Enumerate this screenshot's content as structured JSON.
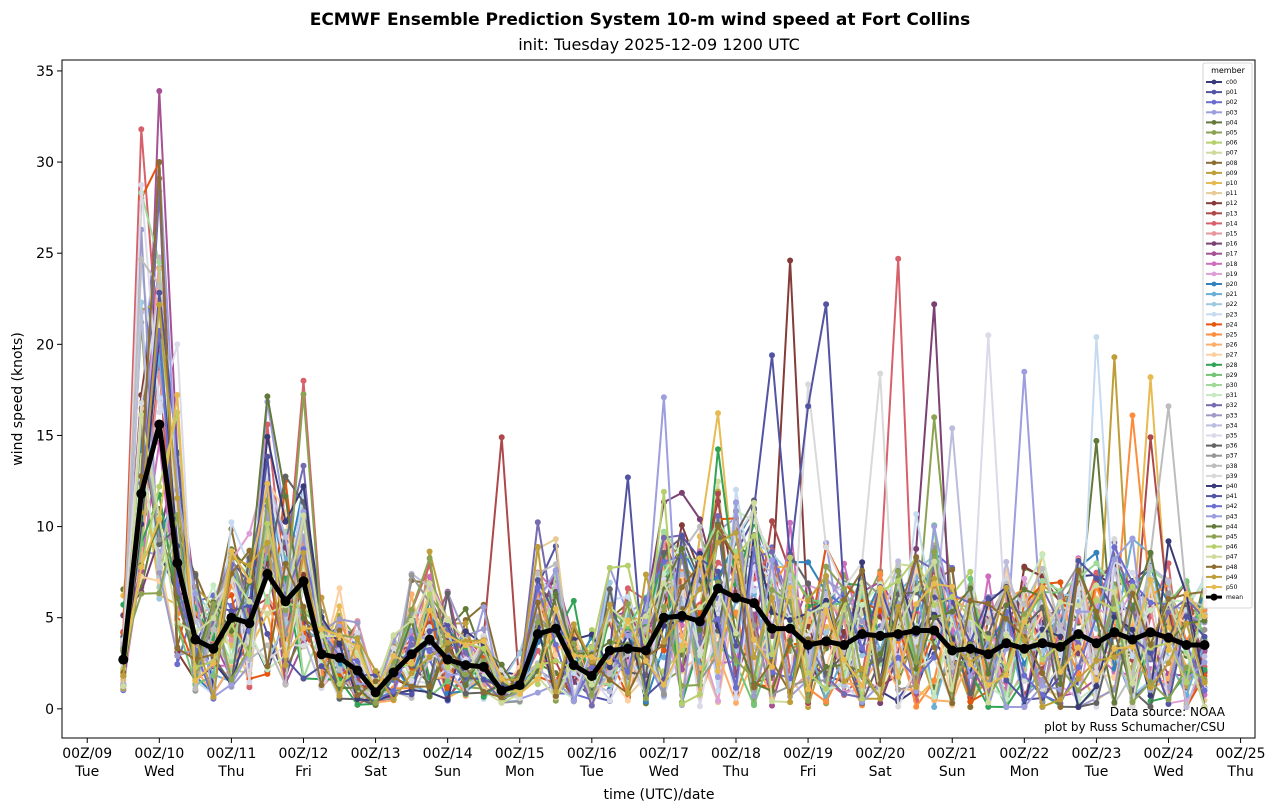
{
  "chart_data": {
    "type": "line",
    "title": "ECMWF Ensemble Prediction System 10-m wind speed at Fort Collins",
    "subtitle": "init: Tuesday 2025-12-09 1200 UTC",
    "xlabel": "time (UTC)/date",
    "ylabel": "wind speed (knots)",
    "ylim": [
      -1.6,
      35.6
    ],
    "yticks": [
      0,
      5,
      10,
      15,
      20,
      25,
      30,
      35
    ],
    "x_unit": "days since 2025-12-09 00Z",
    "xlim": [
      -0.35,
      16.2
    ],
    "xticks": [
      {
        "x": 0,
        "date": "00Z/09",
        "day": "Tue"
      },
      {
        "x": 1,
        "date": "00Z/10",
        "day": "Wed"
      },
      {
        "x": 2,
        "date": "00Z/11",
        "day": "Thu"
      },
      {
        "x": 3,
        "date": "00Z/12",
        "day": "Fri"
      },
      {
        "x": 4,
        "date": "00Z/13",
        "day": "Sat"
      },
      {
        "x": 5,
        "date": "00Z/14",
        "day": "Sun"
      },
      {
        "x": 6,
        "date": "00Z/15",
        "day": "Mon"
      },
      {
        "x": 7,
        "date": "00Z/16",
        "day": "Tue"
      },
      {
        "x": 8,
        "date": "00Z/17",
        "day": "Wed"
      },
      {
        "x": 9,
        "date": "00Z/18",
        "day": "Thu"
      },
      {
        "x": 10,
        "date": "00Z/19",
        "day": "Fri"
      },
      {
        "x": 11,
        "date": "00Z/20",
        "day": "Sat"
      },
      {
        "x": 12,
        "date": "00Z/21",
        "day": "Sun"
      },
      {
        "x": 13,
        "date": "00Z/22",
        "day": "Mon"
      },
      {
        "x": 14,
        "date": "00Z/23",
        "day": "Tue"
      },
      {
        "x": 15,
        "date": "00Z/24",
        "day": "Wed"
      },
      {
        "x": 16,
        "date": "00Z/25",
        "day": "Thu"
      }
    ],
    "legend": {
      "title": "member",
      "position": "right"
    },
    "credit": [
      "Data source: NOAA",
      "plot by Russ Schumacher/CSU"
    ],
    "mean_series": {
      "name": "mean",
      "color": "#000000",
      "x": [
        0.5,
        0.75,
        1.0,
        1.25,
        1.5,
        1.75,
        2.0,
        2.25,
        2.5,
        2.75,
        3.0,
        3.25,
        3.5,
        3.75,
        4.0,
        4.25,
        4.5,
        4.75,
        5.0,
        5.25,
        5.5,
        5.75,
        6.0,
        6.25,
        6.5,
        6.75,
        7.0,
        7.25,
        7.5,
        7.75,
        8.0,
        8.25,
        8.5,
        8.75,
        9.0,
        9.25,
        9.5,
        9.75,
        10.0,
        10.25,
        10.5,
        10.75,
        11.0,
        11.25,
        11.5,
        11.75,
        12.0,
        12.25,
        12.5,
        12.75,
        13.0,
        13.25,
        13.5,
        13.75,
        14.0,
        14.25,
        14.5,
        14.75,
        15.0,
        15.25,
        15.5
      ],
      "values": [
        2.7,
        11.8,
        15.6,
        8.0,
        3.8,
        3.3,
        5.0,
        4.7,
        7.4,
        5.9,
        7.0,
        3.0,
        2.8,
        2.1,
        0.9,
        2.0,
        3.0,
        3.8,
        2.7,
        2.4,
        2.3,
        1.0,
        1.3,
        4.1,
        4.4,
        2.4,
        1.8,
        3.2,
        3.3,
        3.2,
        5.0,
        5.1,
        4.8,
        6.6,
        6.1,
        5.8,
        4.4,
        4.4,
        3.5,
        3.7,
        3.5,
        4.1,
        4.0,
        4.1,
        4.3,
        4.3,
        3.2,
        3.3,
        3.0,
        3.6,
        3.3,
        3.6,
        3.4,
        4.1,
        3.6,
        4.2,
        3.8,
        4.2,
        3.9,
        3.5,
        3.5
      ]
    },
    "member_names": [
      "c00",
      "p01",
      "p02",
      "p03",
      "p04",
      "p05",
      "p06",
      "p07",
      "p08",
      "p09",
      "p10",
      "p11",
      "p12",
      "p13",
      "p14",
      "p15",
      "p16",
      "p17",
      "p18",
      "p19",
      "p20",
      "p21",
      "p22",
      "p23",
      "p24",
      "p25",
      "p26",
      "p27",
      "p28",
      "p29",
      "p30",
      "p31",
      "p32",
      "p33",
      "p34",
      "p35",
      "p36",
      "p37",
      "p38",
      "p39",
      "p40",
      "p41",
      "p42",
      "p43",
      "p44",
      "p45",
      "p46",
      "p47",
      "p48",
      "p49",
      "p50"
    ],
    "member_colors": [
      "#393b79",
      "#5254a3",
      "#6b6ecf",
      "#9c9ede",
      "#637939",
      "#8ca252",
      "#b5cf6b",
      "#cedb9c",
      "#8c6d31",
      "#bd9e39",
      "#e7ba52",
      "#e7cb94",
      "#843c39",
      "#ad494a",
      "#d6616b",
      "#e7969c",
      "#7b4173",
      "#a55194",
      "#ce6dbd",
      "#de9ed6",
      "#3182bd",
      "#6baed6",
      "#9ecae1",
      "#c6dbef",
      "#e6550d",
      "#fd8d3c",
      "#fdae6b",
      "#fdd0a2",
      "#31a354",
      "#74c476",
      "#a1d99b",
      "#c7e9c0",
      "#756bb1",
      "#9e9ac8",
      "#bcbddc",
      "#dadaeb",
      "#636363",
      "#969696",
      "#bdbdbd",
      "#d9d9d9",
      "#393b79",
      "#5254a3",
      "#6b6ecf",
      "#9c9ede",
      "#637939",
      "#8ca252",
      "#b5cf6b",
      "#cedb9c",
      "#8c6d31",
      "#bd9e39",
      "#e7ba52"
    ],
    "member_spread": [
      0.45,
      0.35,
      0.45,
      0.55,
      0.55,
      0.6,
      0.55,
      0.55,
      0.6,
      0.6,
      0.55,
      0.5,
      0.6,
      0.65,
      0.6,
      0.55,
      0.6,
      0.6,
      0.6,
      0.55,
      0.55,
      0.5,
      0.55,
      0.6,
      0.65,
      0.6,
      0.65,
      0.65,
      0.65,
      0.65,
      0.7,
      0.7,
      0.7,
      0.7,
      0.7,
      0.7,
      0.7,
      0.7,
      0.7,
      0.7,
      0.7,
      0.7,
      0.7,
      0.7,
      0.75,
      0.75,
      0.7,
      0.75,
      0.75,
      0.75,
      0.75,
      0.75,
      0.75,
      0.75,
      0.75,
      0.75,
      0.75,
      0.75,
      0.75,
      0.75,
      0.75
    ],
    "member_peaks": [
      {
        "member": "p17",
        "x": 1.0,
        "value": 33.9
      },
      {
        "member": "p14",
        "x": 0.75,
        "value": 31.8
      },
      {
        "member": "p08",
        "x": 1.0,
        "value": 29.1
      },
      {
        "member": "p24",
        "x": 0.75,
        "value": 28.0
      },
      {
        "member": "p23",
        "x": 0.75,
        "value": 24.2
      },
      {
        "member": "p22",
        "x": 0.75,
        "value": 22.3
      },
      {
        "member": "p05",
        "x": 0.75,
        "value": 21.2
      },
      {
        "member": "p14",
        "x": 3.0,
        "value": 18.0
      },
      {
        "member": "p14",
        "x": 2.5,
        "value": 15.6
      },
      {
        "member": "p13",
        "x": 5.75,
        "value": 14.9
      },
      {
        "member": "p41",
        "x": 7.5,
        "value": 12.7
      },
      {
        "member": "p12",
        "x": 9.75,
        "value": 24.6
      },
      {
        "member": "p41",
        "x": 10.25,
        "value": 22.2
      },
      {
        "member": "p41",
        "x": 9.5,
        "value": 19.4
      },
      {
        "member": "p14",
        "x": 11.25,
        "value": 24.7
      },
      {
        "member": "p16",
        "x": 11.75,
        "value": 22.2
      },
      {
        "member": "p35",
        "x": 12.5,
        "value": 20.5
      },
      {
        "member": "p23",
        "x": 14.0,
        "value": 20.4
      },
      {
        "member": "p03",
        "x": 13.0,
        "value": 18.5
      },
      {
        "member": "p39",
        "x": 11.0,
        "value": 18.4
      },
      {
        "member": "p09",
        "x": 14.25,
        "value": 19.3
      },
      {
        "member": "p10",
        "x": 14.75,
        "value": 18.2
      },
      {
        "member": "p39",
        "x": 10.0,
        "value": 17.8
      },
      {
        "member": "p43",
        "x": 8.0,
        "value": 17.1
      },
      {
        "member": "p38",
        "x": 15.0,
        "value": 16.6
      },
      {
        "member": "p05",
        "x": 11.75,
        "value": 16.0
      },
      {
        "member": "p25",
        "x": 14.5,
        "value": 16.1
      },
      {
        "member": "p41",
        "x": 10.0,
        "value": 16.6
      },
      {
        "member": "p34",
        "x": 12.0,
        "value": 15.4
      },
      {
        "member": "p13",
        "x": 14.75,
        "value": 14.9
      },
      {
        "member": "p04",
        "x": 14.0,
        "value": 14.7
      }
    ]
  }
}
